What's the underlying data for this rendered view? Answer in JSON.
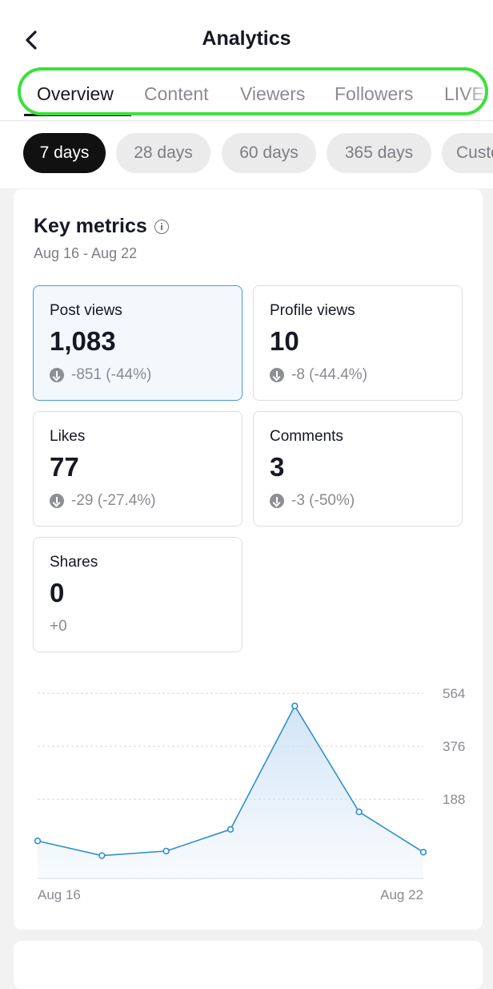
{
  "header": {
    "title": "Analytics",
    "back_icon": "chevron-left-icon"
  },
  "tabs": [
    "Overview",
    "Content",
    "Viewers",
    "Followers",
    "LIVE"
  ],
  "active_tab": "Overview",
  "ranges": [
    "7 days",
    "28 days",
    "60 days",
    "365 days",
    "Custom"
  ],
  "active_range": "7 days",
  "key_metrics": {
    "title": "Key metrics",
    "info_icon": "info-icon",
    "date_range": "Aug 16 - Aug 22",
    "items": [
      {
        "label": "Post views",
        "value": "1,083",
        "change": "-851 (-44%)",
        "trend": "down"
      },
      {
        "label": "Profile views",
        "value": "10",
        "change": "-8 (-44.4%)",
        "trend": "down"
      },
      {
        "label": "Likes",
        "value": "77",
        "change": "-29 (-27.4%)",
        "trend": "down"
      },
      {
        "label": "Comments",
        "value": "3",
        "change": "-3 (-50%)",
        "trend": "down"
      },
      {
        "label": "Shares",
        "value": "0",
        "change": "+0",
        "trend": "none"
      }
    ]
  },
  "colors": {
    "line": "#2f8fce",
    "area_top": "#cfe3f6",
    "selected_border": "#4b9ad6",
    "annotation": "#3ce03c"
  },
  "chart_data": {
    "type": "area",
    "x": [
      "Aug 16",
      "Aug 17",
      "Aug 18",
      "Aug 19",
      "Aug 20",
      "Aug 21",
      "Aug 22"
    ],
    "series": [
      {
        "values": [
          40,
          -12,
          4,
          81,
          519,
          143,
          0
        ]
      }
    ],
    "y_ticks": [
      188,
      376,
      564
    ],
    "x_tick_labels": [
      "Aug 16",
      "Aug 22"
    ],
    "ylim": [
      -93,
      598
    ],
    "grid": true
  }
}
